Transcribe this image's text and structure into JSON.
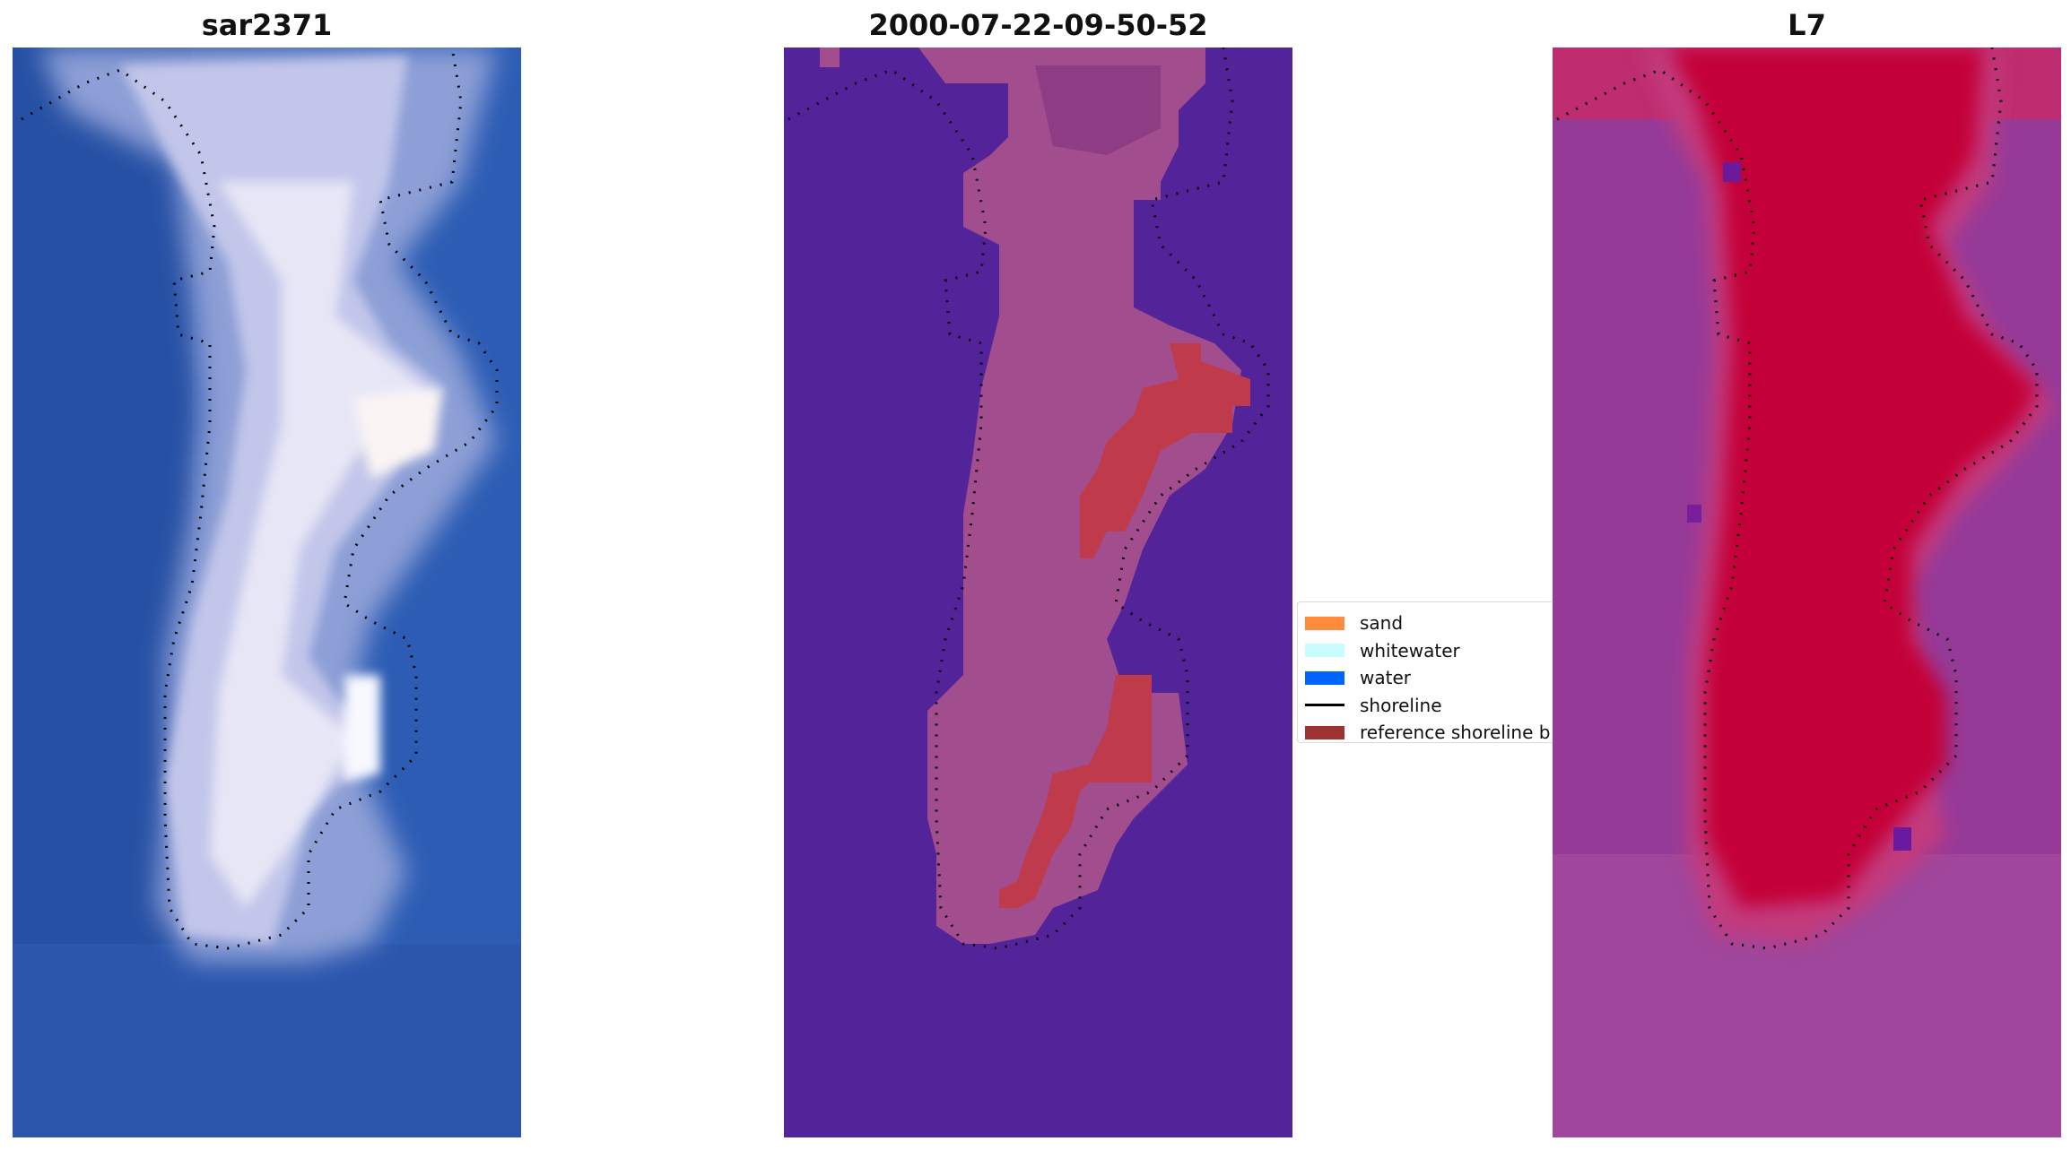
{
  "panels": [
    {
      "id": "rgb",
      "title": "sar2371"
    },
    {
      "id": "classified",
      "title": "2000-07-22-09-50-52"
    },
    {
      "id": "index",
      "title": "L7"
    }
  ],
  "legend": {
    "items": [
      {
        "label": "sand",
        "color": "#ff8c3c",
        "kind": "patch"
      },
      {
        "label": "whitewater",
        "color": "#c8fcff",
        "kind": "patch"
      },
      {
        "label": "water",
        "color": "#0064ff",
        "kind": "patch"
      },
      {
        "label": "shoreline",
        "color": "#000000",
        "kind": "line"
      },
      {
        "label": "reference shoreline buffer",
        "color": "#9e3232",
        "kind": "patch"
      }
    ]
  },
  "colors": {
    "ocean_blue": "#2b5ab4",
    "sand_white": "#dcdcf0",
    "class_water": "#53239a",
    "class_land": "#a45090",
    "class_buffer": "#be3848",
    "index_low": "#9a3c9c",
    "index_high": "#c4023c"
  }
}
